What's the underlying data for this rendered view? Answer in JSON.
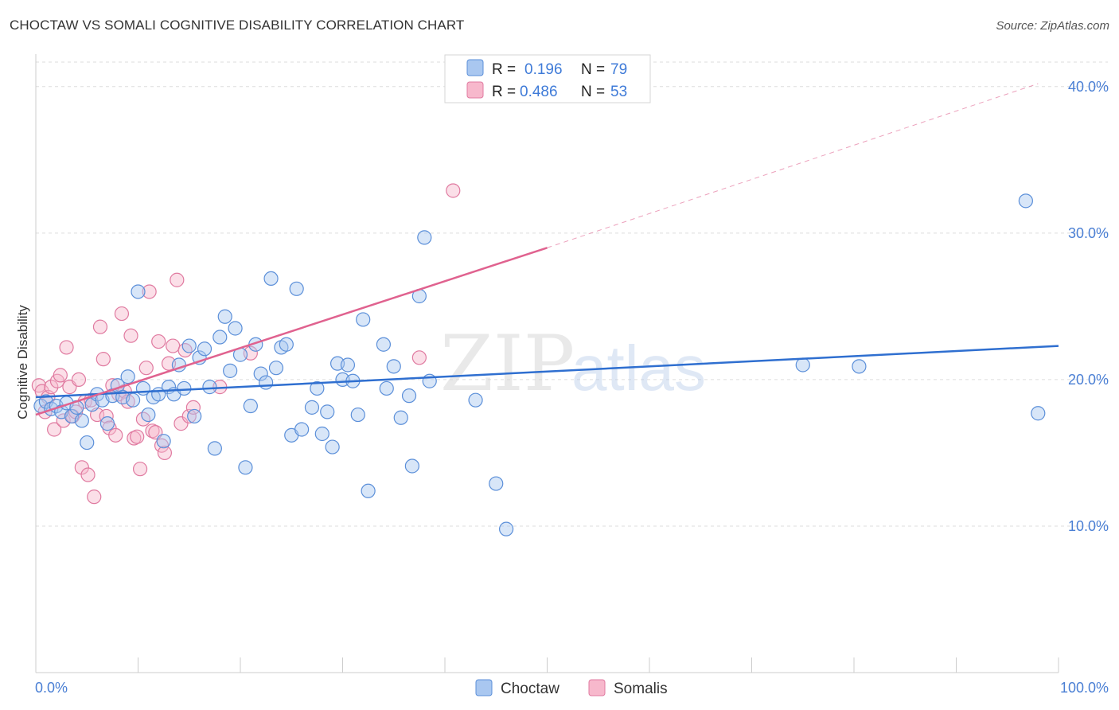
{
  "title": "CHOCTAW VS SOMALI COGNITIVE DISABILITY CORRELATION CHART",
  "source": "Source: ZipAtlas.com",
  "watermark": {
    "zip": "ZIP",
    "atlas": "atlas"
  },
  "legend_top": {
    "r_label": "R =",
    "n_label": "N =",
    "entries": [
      {
        "r": "0.196",
        "n": "79"
      },
      {
        "r": "0.486",
        "n": "53"
      }
    ]
  },
  "chart_data": {
    "type": "scatter",
    "title": "CHOCTAW VS SOMALI COGNITIVE DISABILITY CORRELATION CHART",
    "xlabel": "",
    "ylabel": "Cognitive Disability",
    "xlim": [
      0,
      100
    ],
    "ylim": [
      0,
      42
    ],
    "x_tick_labels": [
      "0.0%",
      "100.0%"
    ],
    "y_ticks": [
      10,
      20,
      30,
      40
    ],
    "y_tick_labels": [
      "10.0%",
      "20.0%",
      "30.0%",
      "40.0%"
    ],
    "grid": true,
    "legend_position": "bottom-center",
    "colors": {
      "choctaw_fill": "#a9c7f0",
      "choctaw_stroke": "#5b8fd9",
      "choctaw_line": "#2f6fd0",
      "somalis_fill": "#f7b8cc",
      "somalis_stroke": "#e07aa0",
      "somalis_line": "#e0628f"
    },
    "series": [
      {
        "name": "Choctaw",
        "R": 0.196,
        "N": 79,
        "trend": {
          "x0": 0,
          "y0": 18.8,
          "x1": 100,
          "y1": 22.3
        },
        "points": [
          [
            0.5,
            18.2
          ],
          [
            1.0,
            18.5
          ],
          [
            1.5,
            18.0
          ],
          [
            2.0,
            18.2
          ],
          [
            2.5,
            17.8
          ],
          [
            3.0,
            18.4
          ],
          [
            3.5,
            17.5
          ],
          [
            4.0,
            18.1
          ],
          [
            4.5,
            17.2
          ],
          [
            5.0,
            15.7
          ],
          [
            5.5,
            18.3
          ],
          [
            6.0,
            19.0
          ],
          [
            6.5,
            18.6
          ],
          [
            7.0,
            17.0
          ],
          [
            7.5,
            18.9
          ],
          [
            8.0,
            19.6
          ],
          [
            8.5,
            18.8
          ],
          [
            9.0,
            20.2
          ],
          [
            9.5,
            18.6
          ],
          [
            10.0,
            26.0
          ],
          [
            10.5,
            19.4
          ],
          [
            11.0,
            17.6
          ],
          [
            11.5,
            18.8
          ],
          [
            12.0,
            19.0
          ],
          [
            12.5,
            15.8
          ],
          [
            13.0,
            19.5
          ],
          [
            13.5,
            19.0
          ],
          [
            14.0,
            21.0
          ],
          [
            14.5,
            19.4
          ],
          [
            15.0,
            22.3
          ],
          [
            15.5,
            17.5
          ],
          [
            16.0,
            21.5
          ],
          [
            16.5,
            22.1
          ],
          [
            17.0,
            19.5
          ],
          [
            17.5,
            15.3
          ],
          [
            18.0,
            22.9
          ],
          [
            18.5,
            24.3
          ],
          [
            19.0,
            20.6
          ],
          [
            19.5,
            23.5
          ],
          [
            20.0,
            21.7
          ],
          [
            20.5,
            14.0
          ],
          [
            21.0,
            18.2
          ],
          [
            21.5,
            22.4
          ],
          [
            22.0,
            20.4
          ],
          [
            22.5,
            19.8
          ],
          [
            23.0,
            26.9
          ],
          [
            23.5,
            20.8
          ],
          [
            24.0,
            22.2
          ],
          [
            24.5,
            22.4
          ],
          [
            25.0,
            16.2
          ],
          [
            25.5,
            26.2
          ],
          [
            26.0,
            16.6
          ],
          [
            27.0,
            18.1
          ],
          [
            27.5,
            19.4
          ],
          [
            28.0,
            16.3
          ],
          [
            28.5,
            17.8
          ],
          [
            29.0,
            15.4
          ],
          [
            29.5,
            21.1
          ],
          [
            30.0,
            20.0
          ],
          [
            30.5,
            21.0
          ],
          [
            31.0,
            19.9
          ],
          [
            31.5,
            17.6
          ],
          [
            32.0,
            24.1
          ],
          [
            32.5,
            12.4
          ],
          [
            34.0,
            22.4
          ],
          [
            34.3,
            19.4
          ],
          [
            35.0,
            20.9
          ],
          [
            35.7,
            17.4
          ],
          [
            36.5,
            18.9
          ],
          [
            36.8,
            14.1
          ],
          [
            37.5,
            25.7
          ],
          [
            38.0,
            29.7
          ],
          [
            38.5,
            19.9
          ],
          [
            43.0,
            18.6
          ],
          [
            45.0,
            12.9
          ],
          [
            46.0,
            9.8
          ],
          [
            75.0,
            21.0
          ],
          [
            80.5,
            20.9
          ],
          [
            96.8,
            32.2
          ],
          [
            98.0,
            17.7
          ]
        ]
      },
      {
        "name": "Somalis",
        "R": 0.486,
        "N": 53,
        "trend_solid": {
          "x0": 0,
          "y0": 17.6,
          "x1": 50,
          "y1": 29.0
        },
        "trend_dashed": {
          "x0": 50,
          "y0": 29.0,
          "x1": 98,
          "y1": 40.2
        },
        "points": [
          [
            0.3,
            19.6
          ],
          [
            0.6,
            19.2
          ],
          [
            0.9,
            17.8
          ],
          [
            1.2,
            18.8
          ],
          [
            1.5,
            19.5
          ],
          [
            1.8,
            16.6
          ],
          [
            2.1,
            19.9
          ],
          [
            2.4,
            20.3
          ],
          [
            2.7,
            17.2
          ],
          [
            3.0,
            22.2
          ],
          [
            3.3,
            19.5
          ],
          [
            3.6,
            17.5
          ],
          [
            3.9,
            17.8
          ],
          [
            4.2,
            20.0
          ],
          [
            4.5,
            14.0
          ],
          [
            4.8,
            18.5
          ],
          [
            5.1,
            13.5
          ],
          [
            5.4,
            18.6
          ],
          [
            5.7,
            12.0
          ],
          [
            6.0,
            17.6
          ],
          [
            6.3,
            23.6
          ],
          [
            6.6,
            21.4
          ],
          [
            6.9,
            17.5
          ],
          [
            7.2,
            16.7
          ],
          [
            7.5,
            19.6
          ],
          [
            7.8,
            16.2
          ],
          [
            8.1,
            19.0
          ],
          [
            8.4,
            24.5
          ],
          [
            8.7,
            19.2
          ],
          [
            9.0,
            18.5
          ],
          [
            9.3,
            23.0
          ],
          [
            9.6,
            16.0
          ],
          [
            9.9,
            16.1
          ],
          [
            10.2,
            13.9
          ],
          [
            10.5,
            17.3
          ],
          [
            10.8,
            20.8
          ],
          [
            11.1,
            26.0
          ],
          [
            11.4,
            16.5
          ],
          [
            11.7,
            16.4
          ],
          [
            12.0,
            22.6
          ],
          [
            12.3,
            15.5
          ],
          [
            12.6,
            15.0
          ],
          [
            13.0,
            21.1
          ],
          [
            13.4,
            22.3
          ],
          [
            13.8,
            26.8
          ],
          [
            14.2,
            17.0
          ],
          [
            14.6,
            22.0
          ],
          [
            15.0,
            17.5
          ],
          [
            15.4,
            18.1
          ],
          [
            18.0,
            19.5
          ],
          [
            21.0,
            21.8
          ],
          [
            37.5,
            21.5
          ],
          [
            40.8,
            32.9
          ]
        ]
      }
    ]
  }
}
